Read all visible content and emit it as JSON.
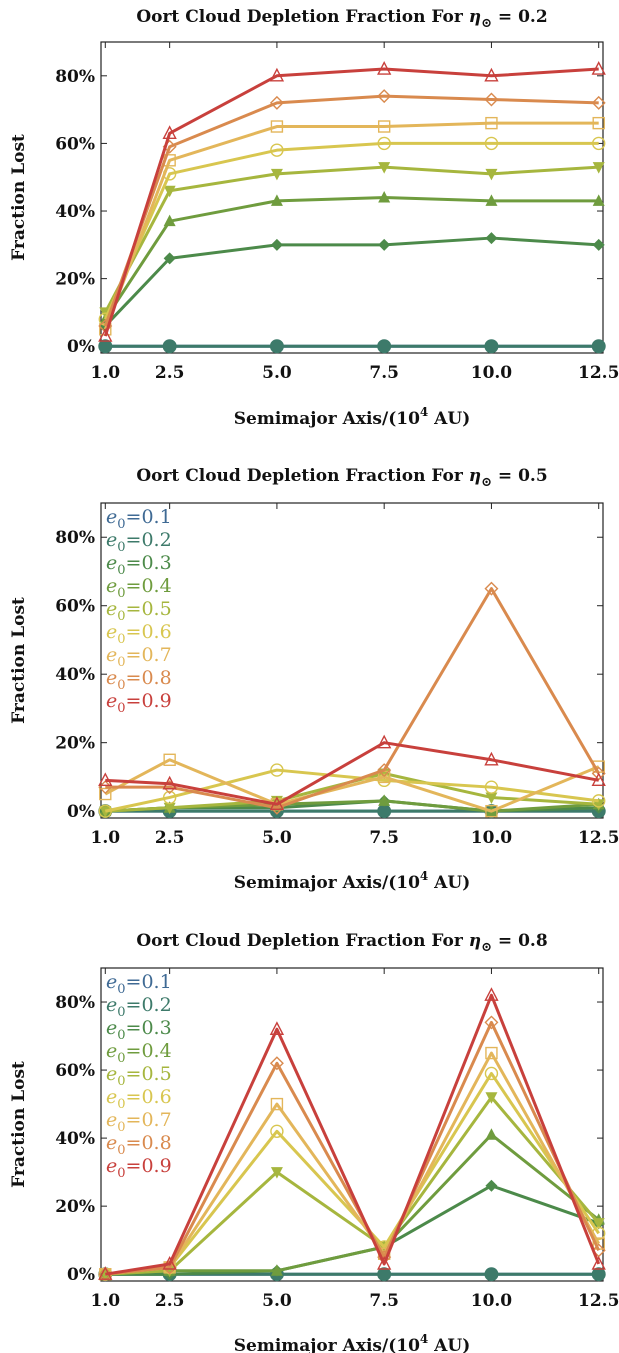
{
  "colors": {
    "e0=0.1": "#3f6a94",
    "e0=0.2": "#3d7a6a",
    "e0=0.3": "#4c8a4a",
    "e0=0.4": "#6f9c3e",
    "e0=0.5": "#a6b63e",
    "e0=0.6": "#d8c64f",
    "e0=0.7": "#e3b65a",
    "e0=0.8": "#d98a4e",
    "e0=0.9": "#c8403c"
  },
  "chart_data": [
    {
      "type": "line",
      "title_main": "Oort Cloud Depletion Fraction For ",
      "title_sym": "η",
      "title_sub": "⊙",
      "title_val": " = 0.2",
      "xlabel_main": "Semimajor Axis/(10",
      "xlabel_sup": "4",
      "xlabel_end": " AU)",
      "ylabel": "Fraction Lost",
      "x": [
        1.0,
        2.5,
        5.0,
        7.5,
        10.0,
        12.5
      ],
      "x_ticks": [
        "1.0",
        "2.5",
        "5.0",
        "7.5",
        "10.0",
        "12.5"
      ],
      "y_ticks": [
        "0%",
        "20%",
        "40%",
        "60%",
        "80%"
      ],
      "ylim": [
        -2,
        90
      ],
      "legend": false,
      "series": [
        {
          "values": [
            0,
            0,
            0,
            0,
            0,
            0
          ]
        },
        {
          "values": [
            0,
            0,
            0,
            0,
            0,
            0
          ]
        },
        {
          "values": [
            6,
            26,
            30,
            30,
            32,
            30
          ]
        },
        {
          "values": [
            8,
            37,
            43,
            44,
            43,
            43
          ]
        },
        {
          "values": [
            10,
            46,
            51,
            53,
            51,
            53
          ]
        },
        {
          "values": [
            8,
            51,
            58,
            60,
            60,
            60
          ]
        },
        {
          "values": [
            5,
            55,
            65,
            65,
            66,
            66
          ]
        },
        {
          "values": [
            6,
            59,
            72,
            74,
            73,
            72
          ]
        },
        {
          "values": [
            3,
            63,
            80,
            82,
            80,
            82
          ]
        }
      ]
    },
    {
      "type": "line",
      "title_main": "Oort Cloud Depletion Fraction For ",
      "title_sym": "η",
      "title_sub": "⊙",
      "title_val": " = 0.5",
      "xlabel_main": "Semimajor Axis/(10",
      "xlabel_sup": "4",
      "xlabel_end": " AU)",
      "ylabel": "Fraction Lost",
      "x": [
        1.0,
        2.5,
        5.0,
        7.5,
        10.0,
        12.5
      ],
      "x_ticks": [
        "1.0",
        "2.5",
        "5.0",
        "7.5",
        "10.0",
        "12.5"
      ],
      "y_ticks": [
        "0%",
        "20%",
        "40%",
        "60%",
        "80%"
      ],
      "ylim": [
        -2,
        90
      ],
      "legend": true,
      "series": [
        {
          "name": "0.1",
          "values": [
            0,
            0,
            0,
            0,
            0,
            0
          ]
        },
        {
          "name": "0.2",
          "values": [
            0,
            0,
            0,
            0,
            0,
            0
          ]
        },
        {
          "name": "0.3",
          "values": [
            0,
            1,
            1,
            3,
            0,
            1
          ]
        },
        {
          "name": "0.4",
          "values": [
            0,
            1,
            2,
            3,
            0,
            2
          ]
        },
        {
          "name": "0.5",
          "values": [
            0,
            1,
            3,
            11,
            4,
            2
          ]
        },
        {
          "name": "0.6",
          "values": [
            0,
            4,
            12,
            9,
            7,
            3
          ]
        },
        {
          "name": "0.7",
          "values": [
            5,
            15,
            2,
            10,
            0,
            13
          ]
        },
        {
          "name": "0.8",
          "values": [
            7,
            7,
            1,
            12,
            65,
            11
          ]
        },
        {
          "name": "0.9",
          "values": [
            9,
            8,
            2,
            20,
            15,
            9
          ]
        }
      ]
    },
    {
      "type": "line",
      "title_main": "Oort Cloud Depletion Fraction For ",
      "title_sym": "η",
      "title_sub": "⊙",
      "title_val": " = 0.8",
      "xlabel_main": "Semimajor Axis/(10",
      "xlabel_sup": "4",
      "xlabel_end": " AU)",
      "ylabel": "Fraction Lost",
      "x": [
        1.0,
        2.5,
        5.0,
        7.5,
        10.0,
        12.5
      ],
      "x_ticks": [
        "1.0",
        "2.5",
        "5.0",
        "7.5",
        "10.0",
        "12.5"
      ],
      "y_ticks": [
        "0%",
        "20%",
        "40%",
        "60%",
        "80%"
      ],
      "ylim": [
        -2,
        90
      ],
      "legend": true,
      "series": [
        {
          "name": "0.1",
          "values": [
            0,
            0,
            0,
            0,
            0,
            0
          ]
        },
        {
          "name": "0.2",
          "values": [
            0,
            0,
            0,
            0,
            0,
            0
          ]
        },
        {
          "name": "0.3",
          "values": [
            0,
            0,
            1,
            8,
            26,
            15
          ]
        },
        {
          "name": "0.4",
          "values": [
            0,
            1,
            1,
            8,
            41,
            16
          ]
        },
        {
          "name": "0.5",
          "values": [
            0,
            1,
            30,
            8,
            52,
            15
          ]
        },
        {
          "name": "0.6",
          "values": [
            0,
            2,
            42,
            8,
            59,
            12
          ]
        },
        {
          "name": "0.7",
          "values": [
            0,
            2,
            50,
            6,
            65,
            9
          ]
        },
        {
          "name": "0.8",
          "values": [
            0,
            2,
            62,
            5,
            74,
            7
          ]
        },
        {
          "name": "0.9",
          "values": [
            0,
            3,
            72,
            3,
            82,
            3
          ]
        }
      ]
    }
  ]
}
